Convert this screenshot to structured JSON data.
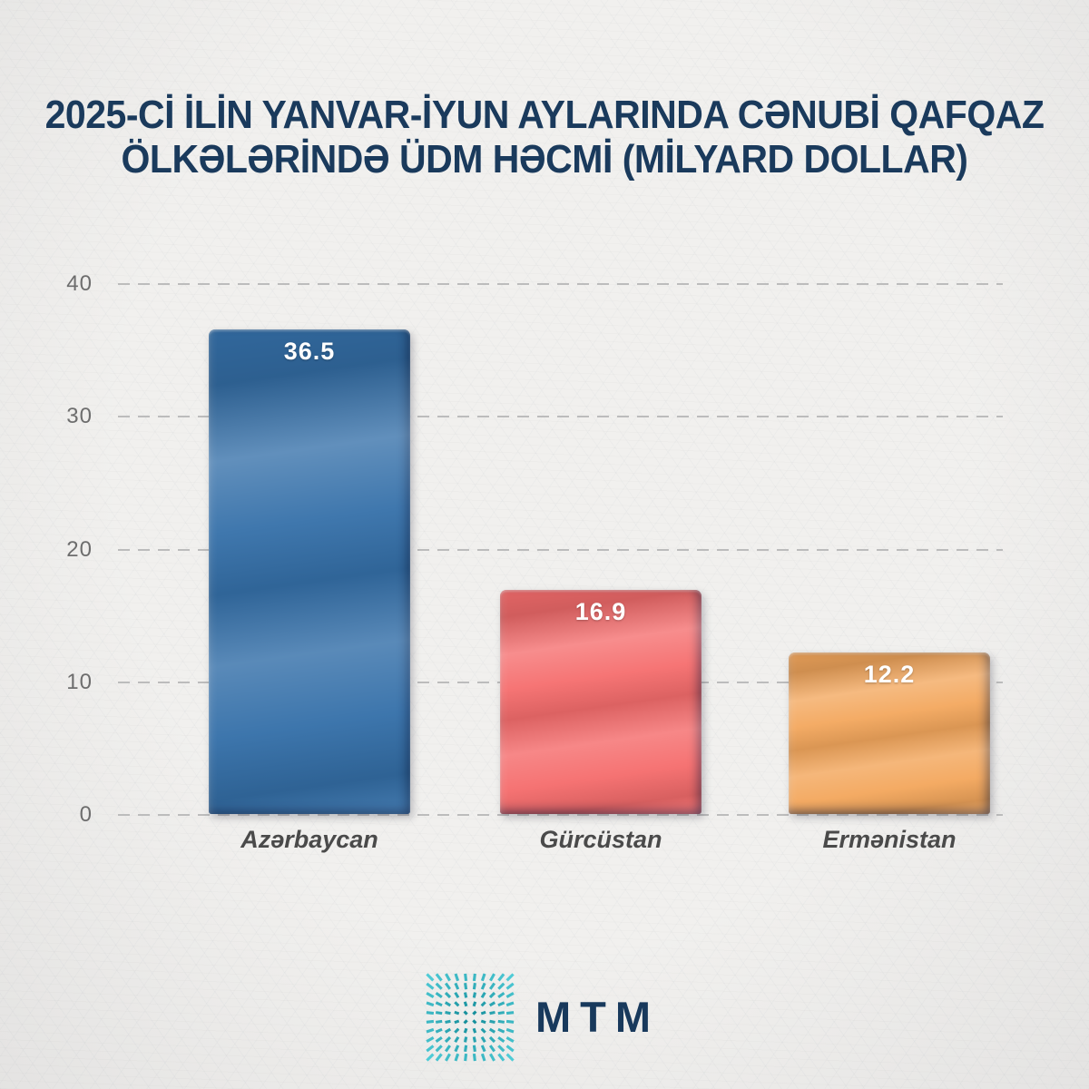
{
  "title": {
    "line1": "2025-Cİ İLİN YANVAR-İYUN AYLARINDA CƏNUBİ QAFQAZ",
    "line2": "ÖLKƏLƏRİNDƏ ÜDM HƏCMİ (MİLYARD DOLLAR)"
  },
  "chart_data": {
    "type": "bar",
    "title": "2025-Cİ İLİN YANVAR-İYUN AYLARINDA CƏNUBİ QAFQAZ ÖLKƏLƏRİNDƏ ÜDM HƏCMİ (MİLYARD DOLLAR)",
    "categories": [
      "Azərbaycan",
      "Gürcüstan",
      "Ermənistan"
    ],
    "values": [
      36.5,
      16.9,
      12.2
    ],
    "value_labels": [
      "36.5",
      "16.9",
      "12.2"
    ],
    "xlabel": "",
    "ylabel": "",
    "ylim": [
      0,
      40
    ],
    "yticks": [
      40,
      30,
      20,
      10,
      0
    ],
    "grid": "horizontal-dashed",
    "legend": "none",
    "bar_colors": [
      "#3570a9",
      "#f56d6d",
      "#f3a75d"
    ]
  },
  "bars": [
    {
      "label": "Azərbaycan",
      "value": "36.5",
      "color": "#3570a9"
    },
    {
      "label": "Gürcüstan",
      "value": "16.9",
      "color": "#f56d6d"
    },
    {
      "label": "Ermənistan",
      "value": "12.2",
      "color": "#f3a75d"
    }
  ],
  "y_axis": {
    "ticks": [
      "40",
      "30",
      "20",
      "10",
      "0"
    ]
  },
  "logo": {
    "text": "MTM",
    "icon": "starburst-dashes-icon",
    "icon_colors": [
      "#0e8795",
      "#55d2dd"
    ],
    "text_color": "#18395c"
  },
  "colors": {
    "background": "#f1f0ee",
    "title_text": "#1a3a5c",
    "gridline": "#bcbcbc",
    "tick_text": "#6d6d6d",
    "category_text": "#4a4a4a",
    "value_text": "#ffffff"
  }
}
